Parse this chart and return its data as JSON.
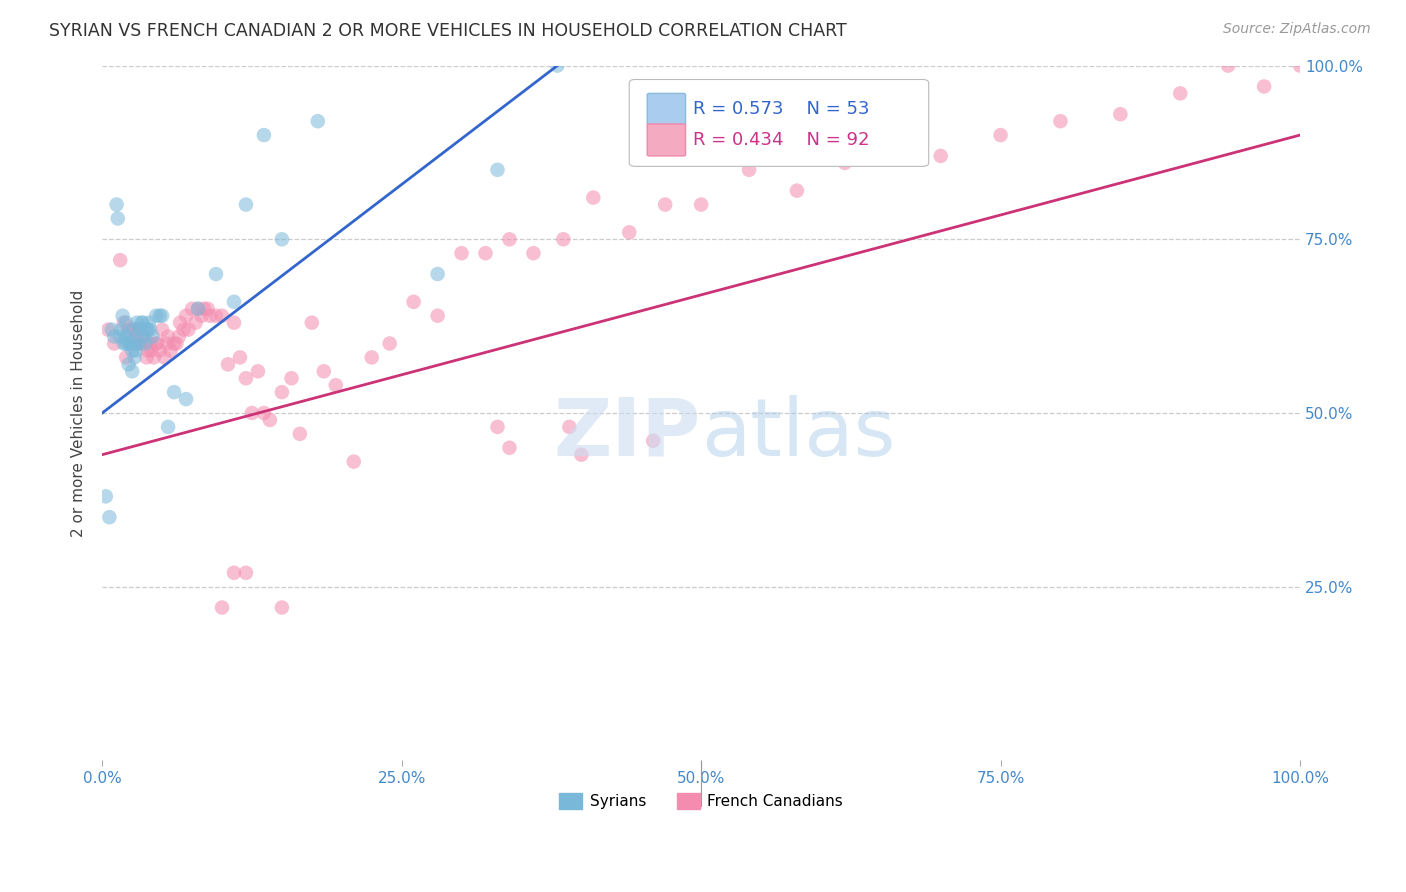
{
  "title": "SYRIAN VS FRENCH CANADIAN 2 OR MORE VEHICLES IN HOUSEHOLD CORRELATION CHART",
  "source": "Source: ZipAtlas.com",
  "ylabel": "2 or more Vehicles in Household",
  "xlim": [
    0.0,
    1.0
  ],
  "ylim": [
    0.0,
    1.0
  ],
  "xtick_labels": [
    "0.0%",
    "25.0%",
    "50.0%",
    "75.0%",
    "100.0%"
  ],
  "xtick_positions": [
    0.0,
    0.25,
    0.5,
    0.75,
    1.0
  ],
  "ytick_labels": [
    "25.0%",
    "50.0%",
    "75.0%",
    "100.0%"
  ],
  "ytick_positions": [
    0.25,
    0.5,
    0.75,
    1.0
  ],
  "syrian_R": 0.573,
  "syrian_N": 53,
  "french_R": 0.434,
  "french_N": 92,
  "legend_label_syrian": "Syrians",
  "legend_label_french": "French Canadians",
  "syrian_color": "#7ab8d9",
  "french_color": "#f48cb0",
  "syrian_line_color": "#3366cc",
  "french_line_color": "#cc3377",
  "syrian_line_x0": 0.0,
  "syrian_line_y0": 0.5,
  "syrian_line_x1": 0.38,
  "syrian_line_y1": 1.0,
  "french_line_x0": 0.0,
  "french_line_y0": 0.44,
  "french_line_x1": 1.0,
  "french_line_y1": 0.9,
  "syrian_x": [
    0.003,
    0.006,
    0.008,
    0.01,
    0.012,
    0.013,
    0.015,
    0.016,
    0.017,
    0.018,
    0.019,
    0.02,
    0.02,
    0.021,
    0.022,
    0.022,
    0.023,
    0.024,
    0.025,
    0.025,
    0.026,
    0.027,
    0.028,
    0.028,
    0.029,
    0.03,
    0.031,
    0.032,
    0.033,
    0.034,
    0.035,
    0.036,
    0.037,
    0.038,
    0.039,
    0.04,
    0.042,
    0.045,
    0.048,
    0.05,
    0.055,
    0.06,
    0.07,
    0.08,
    0.095,
    0.11,
    0.12,
    0.135,
    0.15,
    0.18,
    0.28,
    0.33,
    0.38
  ],
  "syrian_y": [
    0.38,
    0.35,
    0.62,
    0.61,
    0.8,
    0.78,
    0.61,
    0.62,
    0.64,
    0.6,
    0.61,
    0.6,
    0.63,
    0.61,
    0.57,
    0.6,
    0.6,
    0.6,
    0.56,
    0.59,
    0.62,
    0.58,
    0.59,
    0.6,
    0.63,
    0.6,
    0.62,
    0.62,
    0.63,
    0.63,
    0.61,
    0.6,
    0.62,
    0.62,
    0.63,
    0.62,
    0.61,
    0.64,
    0.64,
    0.64,
    0.48,
    0.53,
    0.52,
    0.65,
    0.7,
    0.66,
    0.8,
    0.9,
    0.75,
    0.92,
    0.7,
    0.85,
    1.0
  ],
  "french_x": [
    0.005,
    0.01,
    0.015,
    0.018,
    0.02,
    0.022,
    0.025,
    0.026,
    0.028,
    0.029,
    0.03,
    0.031,
    0.033,
    0.035,
    0.037,
    0.038,
    0.04,
    0.041,
    0.043,
    0.045,
    0.046,
    0.048,
    0.05,
    0.052,
    0.054,
    0.055,
    0.057,
    0.06,
    0.062,
    0.064,
    0.065,
    0.068,
    0.07,
    0.072,
    0.075,
    0.078,
    0.08,
    0.083,
    0.085,
    0.088,
    0.09,
    0.095,
    0.1,
    0.105,
    0.11,
    0.115,
    0.12,
    0.125,
    0.13,
    0.135,
    0.14,
    0.15,
    0.158,
    0.165,
    0.175,
    0.185,
    0.195,
    0.21,
    0.225,
    0.24,
    0.26,
    0.28,
    0.3,
    0.32,
    0.34,
    0.36,
    0.385,
    0.41,
    0.44,
    0.47,
    0.5,
    0.54,
    0.58,
    0.62,
    0.66,
    0.7,
    0.75,
    0.8,
    0.85,
    0.9,
    0.94,
    0.97,
    1.0,
    0.11,
    0.12,
    0.33,
    0.34,
    0.39,
    0.4,
    0.46,
    0.1,
    0.15
  ],
  "french_y": [
    0.62,
    0.6,
    0.72,
    0.63,
    0.58,
    0.62,
    0.6,
    0.62,
    0.62,
    0.61,
    0.62,
    0.6,
    0.6,
    0.61,
    0.58,
    0.59,
    0.6,
    0.59,
    0.58,
    0.6,
    0.6,
    0.59,
    0.62,
    0.58,
    0.6,
    0.61,
    0.59,
    0.6,
    0.6,
    0.61,
    0.63,
    0.62,
    0.64,
    0.62,
    0.65,
    0.63,
    0.65,
    0.64,
    0.65,
    0.65,
    0.64,
    0.64,
    0.64,
    0.57,
    0.63,
    0.58,
    0.55,
    0.5,
    0.56,
    0.5,
    0.49,
    0.53,
    0.55,
    0.47,
    0.63,
    0.56,
    0.54,
    0.43,
    0.58,
    0.6,
    0.66,
    0.64,
    0.73,
    0.73,
    0.75,
    0.73,
    0.75,
    0.81,
    0.76,
    0.8,
    0.8,
    0.85,
    0.82,
    0.86,
    0.87,
    0.87,
    0.9,
    0.92,
    0.93,
    0.96,
    1.0,
    0.97,
    1.0,
    0.27,
    0.27,
    0.48,
    0.45,
    0.48,
    0.44,
    0.46,
    0.22,
    0.22
  ]
}
